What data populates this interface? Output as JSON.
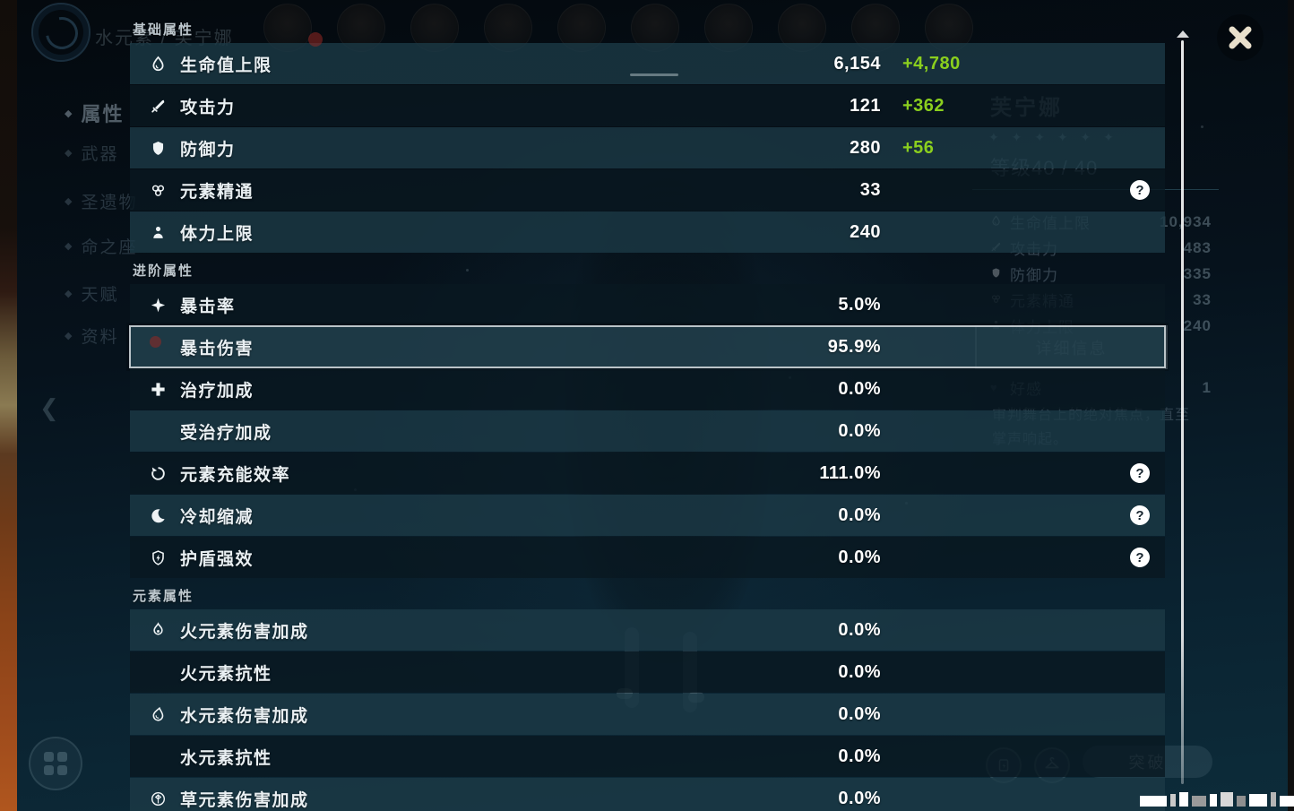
{
  "colors": {
    "bonus_green": "#8bcf1e",
    "selected_border": "#c4ccd1",
    "help_icon_bg": "#ffffff"
  },
  "overlay": {
    "sections": [
      {
        "title": "基础属性",
        "rows": [
          {
            "icon": "hp-icon",
            "label": "生命值上限",
            "value": "6,154",
            "bonus": "+4,780"
          },
          {
            "icon": "atk-icon",
            "label": "攻击力",
            "value": "121",
            "bonus": "+362"
          },
          {
            "icon": "def-icon",
            "label": "防御力",
            "value": "280",
            "bonus": "+56"
          },
          {
            "icon": "elemental-mastery-icon",
            "label": "元素精通",
            "value": "33",
            "help": true
          },
          {
            "icon": "stamina-icon",
            "label": "体力上限",
            "value": "240"
          }
        ]
      },
      {
        "title": "进阶属性",
        "rows": [
          {
            "icon": "crit-rate-icon",
            "label": "暴击率",
            "value": "5.0%"
          },
          {
            "icon": null,
            "label": "暴击伤害",
            "value": "95.9%",
            "selected": true
          },
          {
            "icon": "healing-icon",
            "label": "治疗加成",
            "value": "0.0%"
          },
          {
            "icon": null,
            "label": "受治疗加成",
            "value": "0.0%"
          },
          {
            "icon": "energy-recharge-icon",
            "label": "元素充能效率",
            "value": "111.0%",
            "help": true
          },
          {
            "icon": "cooldown-icon",
            "label": "冷却缩减",
            "value": "0.0%",
            "help": true
          },
          {
            "icon": "shield-strength-icon",
            "label": "护盾强效",
            "value": "0.0%",
            "help": true
          }
        ]
      },
      {
        "title": "元素属性",
        "rows": [
          {
            "icon": "pyro-icon",
            "label": "火元素伤害加成",
            "value": "0.0%"
          },
          {
            "icon": null,
            "label": "火元素抗性",
            "value": "0.0%"
          },
          {
            "icon": "hydro-icon",
            "label": "水元素伤害加成",
            "value": "0.0%"
          },
          {
            "icon": null,
            "label": "水元素抗性",
            "value": "0.0%"
          },
          {
            "icon": "dendro-icon",
            "label": "草元素伤害加成",
            "value": "0.0%"
          }
        ]
      }
    ]
  },
  "background": {
    "top_title": "水元素 / 芙宁娜",
    "sidebar": {
      "items": [
        {
          "label": "属性",
          "selected": true
        },
        {
          "label": "武器"
        },
        {
          "label": "圣遗物"
        },
        {
          "label": "命之座"
        },
        {
          "label": "天赋"
        },
        {
          "label": "资料",
          "badge": true
        }
      ]
    },
    "character_panel": {
      "name": "芙宁娜",
      "stars": "✦ ✦ ✦ ✦ ✦ ✦",
      "level_label": "等级40 / 40",
      "stats": [
        {
          "label": "生命值上限",
          "value": "10,934"
        },
        {
          "label": "攻击力",
          "value": "483"
        },
        {
          "label": "防御力",
          "value": "335"
        },
        {
          "label": "元素精通",
          "value": "33"
        },
        {
          "label": "体力上限",
          "value": "240"
        }
      ],
      "detail_button": "详细信息",
      "friendship_label": "好感",
      "friendship_value": "1",
      "description_line1": "审判舞台上的绝对焦点，直至",
      "description_line2": "掌声响起。"
    },
    "bottom_buttons": {
      "ascend_label": "突破"
    }
  }
}
